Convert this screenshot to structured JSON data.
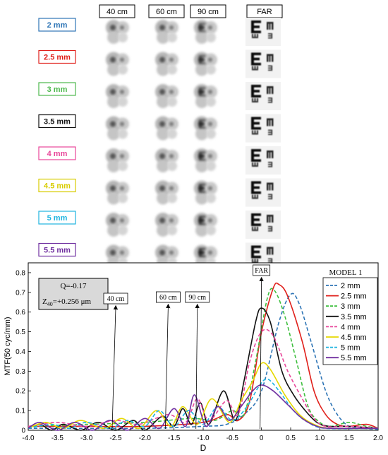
{
  "top_panel": {
    "columns": [
      "40 cm",
      "60 cm",
      "90 cm",
      "FAR"
    ],
    "pupil_labels": [
      {
        "text": "2 mm",
        "color": "#2e75b6"
      },
      {
        "text": "2.5 mm",
        "color": "#e0201b"
      },
      {
        "text": "3 mm",
        "color": "#4cb84c"
      },
      {
        "text": "3.5 mm",
        "color": "#111111"
      },
      {
        "text": "4 mm",
        "color": "#e8479a"
      },
      {
        "text": "4.5 mm",
        "color": "#d8cc00"
      },
      {
        "text": "5 mm",
        "color": "#1fb4e0"
      },
      {
        "text": "5.5 mm",
        "color": "#7030a0"
      }
    ]
  },
  "annotations": {
    "model": "MODEL 1",
    "q": "Q=-0.17",
    "z40_prefix": "Z",
    "z40_sub": "40",
    "z40_value": "=+0.256  μm",
    "arrows": [
      {
        "text": "40 cm",
        "x": -2.5
      },
      {
        "text": "60 cm",
        "x": -1.6
      },
      {
        "text": "90 cm",
        "x": -1.1
      },
      {
        "text": "FAR",
        "x": 0.0
      }
    ]
  },
  "chart_data": {
    "type": "line",
    "xlabel": "D",
    "ylabel": "MTF(50 cyc/mm)",
    "xlim": [
      -4.0,
      2.0
    ],
    "ylim": [
      0,
      0.85
    ],
    "xticks": [
      "-4.0",
      "-3.5",
      "-3.0",
      "-2.5",
      "-2.0",
      "-1.5",
      "-1.0",
      "-0.5",
      "0",
      "0.5",
      "1.0",
      "1.5",
      "2.0"
    ],
    "yticks": [
      "0",
      "0.1",
      "0.2",
      "0.3",
      "0.4",
      "0.5",
      "0.6",
      "0.7",
      "0.8"
    ],
    "legend_position": "top-right",
    "grid": false,
    "series": [
      {
        "name": "2 mm",
        "color": "#2e75b6",
        "dash": true,
        "points": [
          [
            -4,
            0.01
          ],
          [
            -2,
            0.01
          ],
          [
            -1,
            0.02
          ],
          [
            -0.6,
            0.03
          ],
          [
            -0.3,
            0.08
          ],
          [
            0,
            0.2
          ],
          [
            0.3,
            0.55
          ],
          [
            0.5,
            0.69
          ],
          [
            0.65,
            0.64
          ],
          [
            0.85,
            0.45
          ],
          [
            1.1,
            0.2
          ],
          [
            1.3,
            0.08
          ],
          [
            1.5,
            0.02
          ],
          [
            1.7,
            0.01
          ],
          [
            2,
            0.005
          ]
        ]
      },
      {
        "name": "2.5 mm",
        "color": "#e0201b",
        "dash": false,
        "points": [
          [
            -4,
            0.02
          ],
          [
            -3.2,
            0.02
          ],
          [
            -2,
            0.02
          ],
          [
            -1,
            0.04
          ],
          [
            -0.6,
            0.08
          ],
          [
            -0.4,
            0.05
          ],
          [
            -0.2,
            0.15
          ],
          [
            0,
            0.5
          ],
          [
            0.2,
            0.72
          ],
          [
            0.3,
            0.74
          ],
          [
            0.45,
            0.68
          ],
          [
            0.7,
            0.45
          ],
          [
            0.9,
            0.2
          ],
          [
            1.1,
            0.08
          ],
          [
            1.3,
            0.03
          ],
          [
            1.5,
            0.02
          ],
          [
            1.8,
            0.03
          ],
          [
            2,
            0.01
          ]
        ]
      },
      {
        "name": "3 mm",
        "color": "#3fbf3f",
        "dash": true,
        "points": [
          [
            -4,
            0.02
          ],
          [
            -3,
            0.03
          ],
          [
            -2,
            0.04
          ],
          [
            -1.2,
            0.06
          ],
          [
            -0.8,
            0.05
          ],
          [
            -0.5,
            0.1
          ],
          [
            -0.3,
            0.08
          ],
          [
            -0.1,
            0.35
          ],
          [
            0.1,
            0.67
          ],
          [
            0.22,
            0.71
          ],
          [
            0.4,
            0.58
          ],
          [
            0.6,
            0.35
          ],
          [
            0.8,
            0.12
          ],
          [
            1,
            0.04
          ],
          [
            1.2,
            0.02
          ],
          [
            1.5,
            0.04
          ],
          [
            1.8,
            0.02
          ],
          [
            2,
            0.01
          ]
        ]
      },
      {
        "name": "3.5 mm",
        "color": "#111111",
        "dash": false,
        "points": [
          [
            -4,
            0.01
          ],
          [
            -3.8,
            0.03
          ],
          [
            -3.6,
            0
          ],
          [
            -3.4,
            0.03
          ],
          [
            -3.1,
            0
          ],
          [
            -2.8,
            0.04
          ],
          [
            -2.5,
            0
          ],
          [
            -2.2,
            0.05
          ],
          [
            -2,
            0
          ],
          [
            -1.7,
            0.07
          ],
          [
            -1.5,
            0.02
          ],
          [
            -1.35,
            0.11
          ],
          [
            -1.2,
            0.03
          ],
          [
            -1.05,
            0.14
          ],
          [
            -0.9,
            0.03
          ],
          [
            -0.65,
            0.2
          ],
          [
            -0.45,
            0.05
          ],
          [
            -0.3,
            0.25
          ],
          [
            -0.1,
            0.55
          ],
          [
            0,
            0.62
          ],
          [
            0.15,
            0.55
          ],
          [
            0.35,
            0.3
          ],
          [
            0.55,
            0.18
          ],
          [
            0.75,
            0.1
          ],
          [
            0.95,
            0.04
          ],
          [
            1.15,
            0.02
          ],
          [
            1.5,
            0.02
          ],
          [
            2,
            0.01
          ]
        ]
      },
      {
        "name": "4 mm",
        "color": "#e8479a",
        "dash": true,
        "points": [
          [
            -4,
            0.02
          ],
          [
            -3.5,
            0.04
          ],
          [
            -3,
            0.02
          ],
          [
            -2.5,
            0.05
          ],
          [
            -2.1,
            0.03
          ],
          [
            -1.6,
            0.08
          ],
          [
            -1.3,
            0.04
          ],
          [
            -1.1,
            0.16
          ],
          [
            -0.9,
            0.05
          ],
          [
            -0.6,
            0.15
          ],
          [
            -0.4,
            0.08
          ],
          [
            -0.2,
            0.35
          ],
          [
            0,
            0.5
          ],
          [
            0.2,
            0.48
          ],
          [
            0.45,
            0.3
          ],
          [
            0.7,
            0.16
          ],
          [
            0.9,
            0.06
          ],
          [
            1.1,
            0.02
          ],
          [
            1.5,
            0.02
          ],
          [
            2,
            0.01
          ]
        ]
      },
      {
        "name": "4.5 mm",
        "color": "#e6d800",
        "dash": false,
        "points": [
          [
            -4,
            0.01
          ],
          [
            -3.7,
            0.04
          ],
          [
            -3.4,
            0.01
          ],
          [
            -3.1,
            0.05
          ],
          [
            -2.7,
            0.01
          ],
          [
            -2.4,
            0.06
          ],
          [
            -2.1,
            0.01
          ],
          [
            -1.8,
            0.1
          ],
          [
            -1.55,
            0.02
          ],
          [
            -1.35,
            0.12
          ],
          [
            -1.1,
            0.03
          ],
          [
            -0.85,
            0.16
          ],
          [
            -0.55,
            0.04
          ],
          [
            -0.35,
            0.15
          ],
          [
            -0.15,
            0.25
          ],
          [
            0,
            0.34
          ],
          [
            0.15,
            0.31
          ],
          [
            0.4,
            0.18
          ],
          [
            0.65,
            0.08
          ],
          [
            0.9,
            0.03
          ],
          [
            1.2,
            0.01
          ],
          [
            2,
            0.01
          ]
        ]
      },
      {
        "name": "5 mm",
        "color": "#1fb4e0",
        "dash": true,
        "points": [
          [
            -4,
            0.01
          ],
          [
            -3.6,
            0.03
          ],
          [
            -3.3,
            0.01
          ],
          [
            -3,
            0.04
          ],
          [
            -2.6,
            0.01
          ],
          [
            -2.3,
            0.05
          ],
          [
            -2,
            0.02
          ],
          [
            -1.75,
            0.1
          ],
          [
            -1.5,
            0.02
          ],
          [
            -1.25,
            0.1
          ],
          [
            -1,
            0.03
          ],
          [
            -0.75,
            0.12
          ],
          [
            -0.5,
            0.05
          ],
          [
            -0.25,
            0.12
          ],
          [
            -0.05,
            0.22
          ],
          [
            0.1,
            0.26
          ],
          [
            0.3,
            0.2
          ],
          [
            0.55,
            0.1
          ],
          [
            0.8,
            0.04
          ],
          [
            1.1,
            0.01
          ],
          [
            2,
            0.01
          ]
        ]
      },
      {
        "name": "5.5 mm",
        "color": "#7030a0",
        "dash": false,
        "points": [
          [
            -4,
            0.01
          ],
          [
            -3.8,
            0.04
          ],
          [
            -3.5,
            0
          ],
          [
            -3.2,
            0.04
          ],
          [
            -2.9,
            0
          ],
          [
            -2.6,
            0.05
          ],
          [
            -2.3,
            0
          ],
          [
            -2,
            0.06
          ],
          [
            -1.75,
            0.01
          ],
          [
            -1.5,
            0.11
          ],
          [
            -1.3,
            0.02
          ],
          [
            -1.15,
            0.18
          ],
          [
            -0.95,
            0.02
          ],
          [
            -0.75,
            0.12
          ],
          [
            -0.55,
            0.05
          ],
          [
            -0.35,
            0.12
          ],
          [
            -0.15,
            0.2
          ],
          [
            0,
            0.23
          ],
          [
            0.2,
            0.2
          ],
          [
            0.45,
            0.13
          ],
          [
            0.7,
            0.06
          ],
          [
            0.95,
            0.02
          ],
          [
            1.2,
            0.01
          ],
          [
            2,
            0.01
          ]
        ]
      }
    ]
  }
}
